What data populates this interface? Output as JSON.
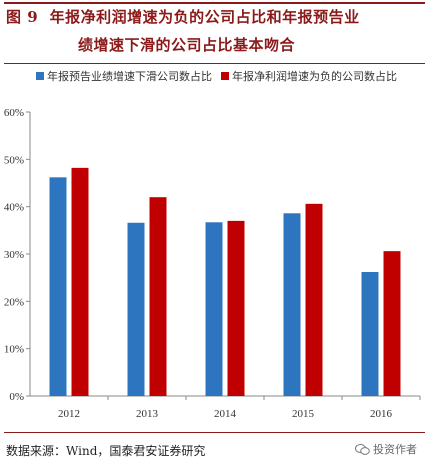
{
  "figure": {
    "label": "图 9",
    "title_line1": "年报净利润增速为负的公司占比和年报预告业",
    "title_line2": "绩增速下滑的公司占比基本吻合"
  },
  "source": "数据来源：Wind，国泰君安证券研究",
  "watermark": "投资作者",
  "colors": {
    "series1": "#2e75c0",
    "series2": "#c00000",
    "axis": "#8a8a8a",
    "title": "#8b1a1a"
  },
  "chart_data": {
    "type": "bar",
    "title": "",
    "xlabel": "",
    "ylabel": "",
    "categories": [
      "2012",
      "2013",
      "2014",
      "2015",
      "2016"
    ],
    "series": [
      {
        "name": "年报预告业绩增速下滑公司数占比",
        "values": [
          46.2,
          36.6,
          36.7,
          38.6,
          26.2
        ]
      },
      {
        "name": "年报净利润增速为负的公司数占比",
        "values": [
          48.2,
          42.0,
          37.0,
          40.6,
          30.6
        ]
      }
    ],
    "ylim": [
      0,
      60
    ],
    "yticks": [
      "0%",
      "10%",
      "20%",
      "30%",
      "40%",
      "50%",
      "60%"
    ],
    "grid": false,
    "legend_position": "top"
  }
}
